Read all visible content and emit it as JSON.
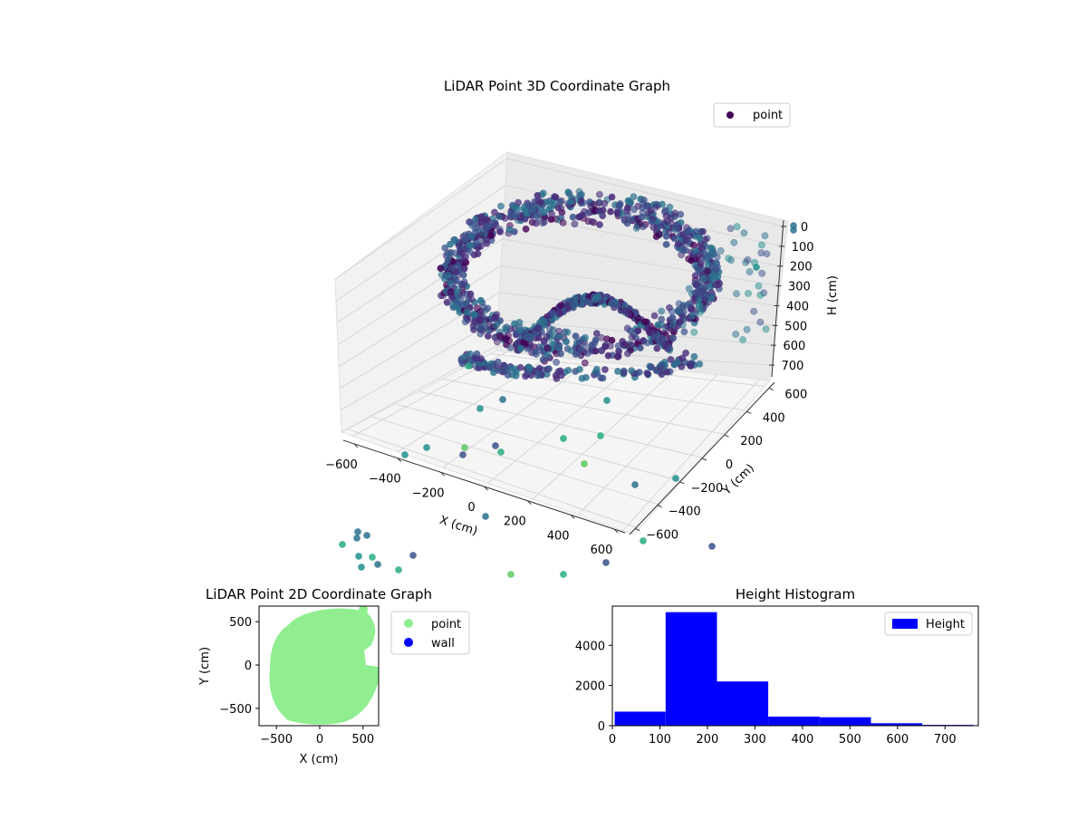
{
  "colors": {
    "point_2d": "#90ee90",
    "wall_2d": "#0000ff",
    "hist_bar": "#0000ff",
    "legend_3d_marker": "#440154",
    "pane": "#f0f0f0",
    "grid": "#d6d6d6"
  },
  "chart_data": [
    {
      "type": "scatter",
      "title": "LiDAR Point 3D Coordinate Graph",
      "xlabel": "X (cm)",
      "ylabel": "Y (cm)",
      "zlabel": "H (cm)",
      "legend": [
        "point"
      ],
      "legend_position": "top-right",
      "x_ticks": [
        "−600",
        "−400",
        "−200",
        "0",
        "200",
        "400",
        "600"
      ],
      "y_ticks": [
        "−600",
        "−400",
        "−200",
        "0",
        "200",
        "400",
        "600"
      ],
      "z_ticks": [
        "0",
        "100",
        "200",
        "300",
        "400",
        "500",
        "600",
        "700"
      ],
      "xlim": [
        -650,
        650
      ],
      "ylim": [
        -650,
        650
      ],
      "zlim": [
        0,
        760
      ],
      "z_inverted": true,
      "colormap": "viridis",
      "grid": true
    },
    {
      "type": "scatter",
      "title": "LiDAR Point 2D Coordinate Graph",
      "xlabel": "X (cm)",
      "ylabel": "Y (cm)",
      "x_ticks": [
        "−500",
        "0",
        "500"
      ],
      "y_ticks": [
        "500",
        "0",
        "−500"
      ],
      "xlim": [
        -700,
        680
      ],
      "ylim": [
        -700,
        680
      ],
      "series": [
        {
          "name": "point",
          "color": "#90ee90"
        },
        {
          "name": "wall",
          "color": "#0000ff"
        }
      ],
      "legend_position": "outside-right",
      "grid": false
    },
    {
      "type": "bar",
      "title": "Height Histogram",
      "legend": [
        "Height"
      ],
      "legend_position": "top-right",
      "bins": [
        {
          "from": 5,
          "to": 112,
          "count": 700
        },
        {
          "from": 112,
          "to": 220,
          "count": 5650
        },
        {
          "from": 220,
          "to": 328,
          "count": 2200
        },
        {
          "from": 328,
          "to": 436,
          "count": 450
        },
        {
          "from": 436,
          "to": 544,
          "count": 420
        },
        {
          "from": 544,
          "to": 652,
          "count": 120
        },
        {
          "from": 652,
          "to": 760,
          "count": 40
        }
      ],
      "x_ticks": [
        "0",
        "100",
        "200",
        "300",
        "400",
        "500",
        "600",
        "700"
      ],
      "y_ticks": [
        "0",
        "2000",
        "4000"
      ],
      "xlim": [
        0,
        770
      ],
      "ylim": [
        0,
        5950
      ],
      "grid": false
    }
  ]
}
